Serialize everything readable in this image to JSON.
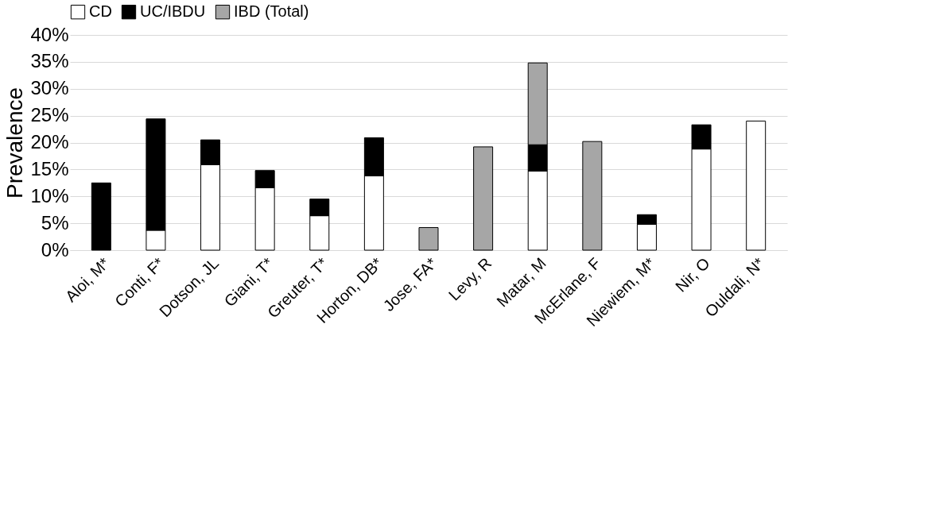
{
  "chart_data": {
    "type": "bar",
    "stacked": true,
    "ylabel": "Prevalence",
    "categories": [
      "Aloi, M*",
      "Conti, F*",
      "Dotson, JL",
      "Giani, T*",
      "Greuter, T*",
      "Horton, DB*",
      "Jose, FA*",
      "Levy, R",
      "Matar, M",
      "McErlane, F",
      "Niewiem, M*",
      "Nir, O",
      "Ouldali, N*"
    ],
    "series": [
      {
        "name": "CD",
        "color": "#ffffff",
        "values": [
          null,
          3.7,
          15.9,
          11.6,
          6.4,
          13.8,
          null,
          null,
          14.7,
          null,
          4.8,
          18.8,
          24.0
        ]
      },
      {
        "name": "UC/IBDU",
        "color": "#000000",
        "values": [
          12.5,
          20.7,
          4.6,
          3.2,
          3.1,
          7.1,
          null,
          null,
          4.9,
          null,
          1.8,
          4.5,
          null
        ]
      },
      {
        "name": "IBD (Total)",
        "color": "#a6a6a6",
        "values": [
          null,
          null,
          null,
          null,
          null,
          null,
          4.2,
          19.2,
          15.2,
          20.2,
          null,
          null,
          null
        ]
      }
    ],
    "ylim": [
      0,
      40
    ],
    "yticks": [
      {
        "value": 0,
        "label": "0%"
      },
      {
        "value": 5,
        "label": "5%"
      },
      {
        "value": 10,
        "label": "10%"
      },
      {
        "value": 15,
        "label": "15%"
      },
      {
        "value": 20,
        "label": "20%"
      },
      {
        "value": 25,
        "label": "25%"
      },
      {
        "value": 30,
        "label": "30%"
      },
      {
        "value": 35,
        "label": "35%"
      },
      {
        "value": 40,
        "label": "40%"
      }
    ],
    "grid": "y",
    "legend": "top"
  }
}
